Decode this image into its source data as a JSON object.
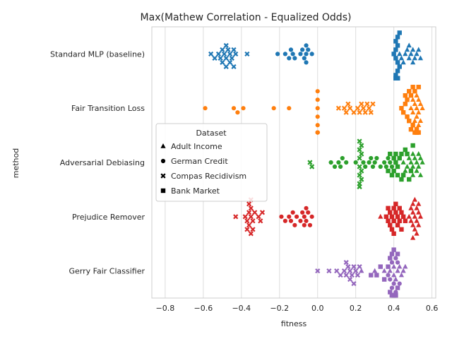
{
  "chart_data": {
    "type": "scatter",
    "title": "Max(Mathew Correlation - Equalized Odds)",
    "xlabel": "fitness",
    "ylabel": "method",
    "xlim": [
      -0.87,
      0.62
    ],
    "xticks": [
      -0.8,
      -0.6,
      -0.4,
      -0.2,
      0.0,
      0.2,
      0.4,
      0.6
    ],
    "xtick_labels": [
      "−0.8",
      "−0.6",
      "−0.4",
      "−0.2",
      "0.0",
      "0.2",
      "0.4",
      "0.6"
    ],
    "grid": "vertical",
    "categories": [
      "Standard MLP (baseline)",
      "Fair Transition Loss",
      "Adversarial Debiasing",
      "Prejudice Remover",
      "Gerry Fair Classifier"
    ],
    "category_colors": [
      "#1f77b4",
      "#ff7f0e",
      "#2ca02c",
      "#d62728",
      "#9467bd"
    ],
    "legend": {
      "title": "Dataset",
      "placement": "center-left",
      "entries": [
        {
          "label": "Adult Income",
          "marker": "triangle"
        },
        {
          "label": "German Credit",
          "marker": "circle"
        },
        {
          "label": "Compas Recidivism",
          "marker": "x"
        },
        {
          "label": "Bank Market",
          "marker": "square"
        }
      ]
    },
    "series": [
      {
        "category": "Standard MLP (baseline)",
        "dataset": "Adult Income",
        "marker": "triangle",
        "x": [
          0.46,
          0.48,
          0.49,
          0.5,
          0.51,
          0.52,
          0.53,
          0.47,
          0.44,
          0.45,
          0.54,
          0.43,
          0.5,
          0.48
        ]
      },
      {
        "category": "Standard MLP (baseline)",
        "dataset": "German Credit",
        "marker": "circle",
        "x": [
          -0.21,
          -0.17,
          -0.15,
          -0.13,
          -0.12,
          -0.09,
          -0.07,
          -0.06,
          -0.06,
          -0.05,
          -0.03,
          -0.14,
          -0.08,
          -0.06
        ]
      },
      {
        "category": "Standard MLP (baseline)",
        "dataset": "Compas Recidivism",
        "marker": "x",
        "x": [
          -0.56,
          -0.54,
          -0.52,
          -0.51,
          -0.5,
          -0.49,
          -0.48,
          -0.47,
          -0.46,
          -0.45,
          -0.44,
          -0.43,
          -0.37,
          -0.48,
          -0.46,
          -0.44,
          -0.5,
          -0.48
        ]
      },
      {
        "category": "Standard MLP (baseline)",
        "dataset": "Bank Market",
        "marker": "square",
        "x": [
          0.4,
          0.41,
          0.41,
          0.42,
          0.42,
          0.43,
          0.41,
          0.42,
          0.41,
          0.42,
          0.43,
          0.42,
          0.41,
          0.42,
          0.41,
          0.42,
          0.42
        ]
      },
      {
        "category": "Fair Transition Loss",
        "dataset": "Adult Income",
        "marker": "triangle",
        "x": [
          0.49,
          0.5,
          0.51,
          0.52,
          0.53,
          0.54,
          0.55,
          0.52,
          0.51,
          0.53,
          0.5,
          0.54,
          0.52,
          0.53
        ]
      },
      {
        "category": "Fair Transition Loss",
        "dataset": "German Credit",
        "marker": "circle",
        "x": [
          -0.59,
          -0.44,
          -0.42,
          -0.39,
          -0.23,
          -0.15,
          0.0,
          0.0,
          0.0,
          0.0,
          0.0,
          0.0,
          0.0,
          0.0,
          0.0
        ]
      },
      {
        "category": "Fair Transition Loss",
        "dataset": "Compas Recidivism",
        "marker": "x",
        "x": [
          0.11,
          0.14,
          0.15,
          0.16,
          0.17,
          0.19,
          0.21,
          0.22,
          0.23,
          0.24,
          0.25,
          0.26,
          0.27,
          0.28,
          0.29
        ]
      },
      {
        "category": "Fair Transition Loss",
        "dataset": "Bank Market",
        "marker": "square",
        "x": [
          0.44,
          0.45,
          0.46,
          0.47,
          0.48,
          0.49,
          0.5,
          0.51,
          0.52,
          0.53,
          0.52,
          0.51,
          0.5,
          0.49,
          0.48,
          0.47,
          0.46,
          0.52,
          0.53,
          0.52
        ]
      },
      {
        "category": "Adversarial Debiasing",
        "dataset": "Adult Income",
        "marker": "triangle",
        "x": [
          0.45,
          0.47,
          0.49,
          0.5,
          0.51,
          0.52,
          0.53,
          0.54,
          0.55,
          0.48,
          0.5,
          0.52,
          0.54,
          0.46,
          0.5,
          0.53
        ]
      },
      {
        "category": "Adversarial Debiasing",
        "dataset": "German Credit",
        "marker": "circle",
        "x": [
          0.07,
          0.09,
          0.11,
          0.12,
          0.13,
          0.15,
          0.2,
          0.24,
          0.27,
          0.29,
          0.3,
          0.35,
          0.25,
          0.28,
          0.31,
          0.33,
          0.36,
          0.37,
          0.38,
          0.39
        ]
      },
      {
        "category": "Adversarial Debiasing",
        "dataset": "Compas Recidivism",
        "marker": "x",
        "x": [
          -0.04,
          -0.03,
          0.22,
          0.22,
          0.22,
          0.23,
          0.22,
          0.23,
          0.22,
          0.23,
          0.22,
          0.22,
          0.23,
          0.22
        ]
      },
      {
        "category": "Adversarial Debiasing",
        "dataset": "Bank Market",
        "marker": "square",
        "x": [
          0.37,
          0.38,
          0.39,
          0.4,
          0.41,
          0.42,
          0.43,
          0.44,
          0.45,
          0.46,
          0.47,
          0.48,
          0.49,
          0.5,
          0.42,
          0.4,
          0.44,
          0.41
        ]
      },
      {
        "category": "Prejudice Remover",
        "dataset": "Adult Income",
        "marker": "triangle",
        "x": [
          0.33,
          0.48,
          0.49,
          0.5,
          0.51,
          0.52,
          0.53,
          0.54,
          0.5,
          0.52,
          0.51,
          0.53,
          0.49,
          0.5,
          0.52,
          0.51,
          0.53,
          0.5
        ]
      },
      {
        "category": "Prejudice Remover",
        "dataset": "German Credit",
        "marker": "circle",
        "x": [
          -0.19,
          -0.17,
          -0.15,
          -0.14,
          -0.13,
          -0.11,
          -0.09,
          -0.07,
          -0.06,
          -0.05,
          -0.03,
          -0.12,
          -0.08,
          -0.06,
          -0.04,
          -0.07
        ]
      },
      {
        "category": "Prejudice Remover",
        "dataset": "Compas Recidivism",
        "marker": "x",
        "x": [
          -0.43,
          -0.38,
          -0.37,
          -0.36,
          -0.35,
          -0.34,
          -0.33,
          -0.31,
          -0.3,
          -0.29,
          -0.36,
          -0.35,
          -0.37,
          -0.34,
          -0.36,
          -0.35,
          -0.35
        ]
      },
      {
        "category": "Prejudice Remover",
        "dataset": "Bank Market",
        "marker": "square",
        "x": [
          0.36,
          0.37,
          0.38,
          0.39,
          0.4,
          0.41,
          0.42,
          0.43,
          0.44,
          0.45,
          0.46,
          0.38,
          0.4,
          0.42,
          0.44,
          0.39,
          0.41,
          0.43,
          0.37,
          0.4
        ]
      },
      {
        "category": "Gerry Fair Classifier",
        "dataset": "Adult Income",
        "marker": "triangle",
        "x": [
          0.23,
          0.3,
          0.35,
          0.38,
          0.4,
          0.42,
          0.44,
          0.45,
          0.46,
          0.4,
          0.43,
          0.41
        ]
      },
      {
        "category": "Gerry Fair Classifier",
        "dataset": "German Credit",
        "marker": "circle",
        "x": [
          0.37,
          0.38,
          0.39,
          0.4,
          0.41,
          0.42,
          0.43,
          0.39,
          0.41
        ]
      },
      {
        "category": "Gerry Fair Classifier",
        "dataset": "Compas Recidivism",
        "marker": "x",
        "x": [
          0.0,
          0.06,
          0.1,
          0.12,
          0.14,
          0.15,
          0.16,
          0.17,
          0.18,
          0.19,
          0.2,
          0.21,
          0.22,
          0.15,
          0.17,
          0.19
        ]
      },
      {
        "category": "Gerry Fair Classifier",
        "dataset": "Bank Market",
        "marker": "square",
        "x": [
          0.28,
          0.31,
          0.33,
          0.35,
          0.37,
          0.38,
          0.39,
          0.4,
          0.41,
          0.42,
          0.38,
          0.4,
          0.41,
          0.39,
          0.4,
          0.42,
          0.41,
          0.4,
          0.39,
          0.41
        ]
      }
    ]
  }
}
